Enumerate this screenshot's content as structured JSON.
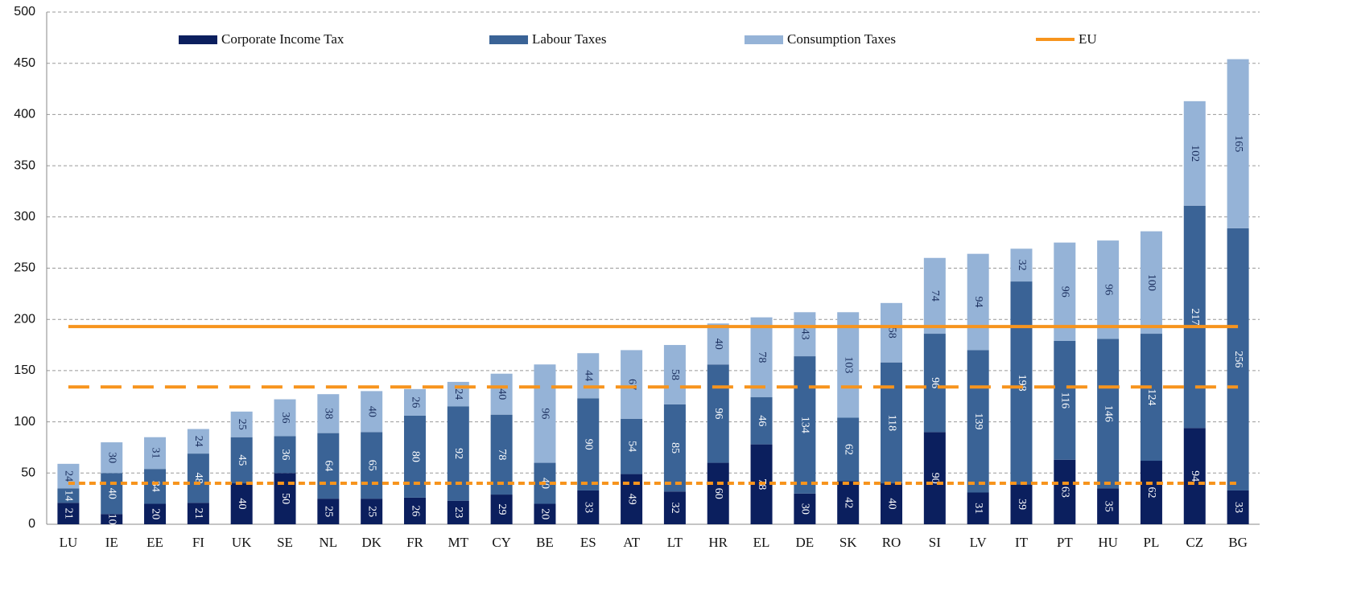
{
  "chart_data": {
    "type": "stacked_bar",
    "categories": [
      "LU",
      "IE",
      "EE",
      "FI",
      "UK",
      "SE",
      "NL",
      "DK",
      "FR",
      "MT",
      "CY",
      "BE",
      "ES",
      "AT",
      "LT",
      "HR",
      "EL",
      "DE",
      "SK",
      "RO",
      "SI",
      "LV",
      "IT",
      "PT",
      "HU",
      "PL",
      "CZ",
      "BG"
    ],
    "series": [
      {
        "name": "Corporate Income Tax",
        "color": "#0b1f5e",
        "label_color": "#ffffff",
        "values": [
          21,
          10,
          20,
          21,
          40,
          50,
          25,
          25,
          26,
          23,
          29,
          20,
          33,
          49,
          32,
          60,
          78,
          30,
          42,
          40,
          90,
          31,
          39,
          63,
          35,
          62,
          94,
          33
        ]
      },
      {
        "name": "Labour Taxes",
        "color": "#3a6396",
        "label_color": "#ffffff",
        "values": [
          14,
          40,
          34,
          48,
          45,
          36,
          64,
          65,
          80,
          92,
          78,
          40,
          90,
          54,
          85,
          96,
          46,
          134,
          62,
          118,
          96,
          139,
          198,
          116,
          146,
          124,
          217,
          256
        ]
      },
      {
        "name": "Consumption Taxes",
        "color": "#95b3d7",
        "label_color": "#1b2f5e",
        "values": [
          24,
          30,
          31,
          24,
          25,
          36,
          38,
          40,
          26,
          24,
          40,
          96,
          44,
          67,
          58,
          40,
          78,
          43,
          103,
          58,
          74,
          94,
          32,
          96,
          96,
          100,
          102,
          165
        ]
      }
    ],
    "eu": {
      "name": "EU",
      "value": 193,
      "color": "#f7941d"
    },
    "reference_lines": [
      {
        "value": 134,
        "dash": "dashed",
        "color": "#f7941d"
      },
      {
        "value": 40,
        "dash": "dotted",
        "color": "#f7941d"
      }
    ],
    "ylim": [
      0,
      500
    ],
    "yticks": [
      0,
      50,
      100,
      150,
      200,
      250,
      300,
      350,
      400,
      450,
      500
    ],
    "grid": true
  }
}
